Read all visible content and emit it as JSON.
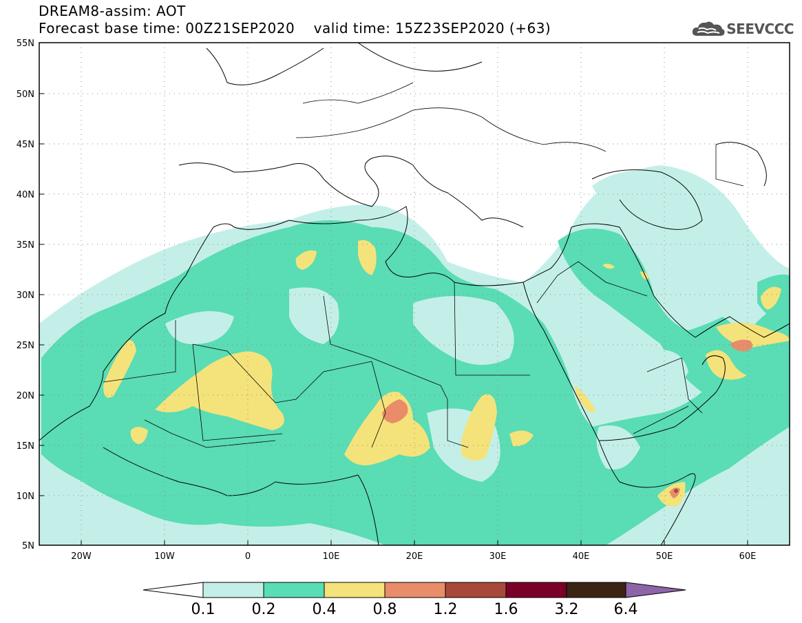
{
  "header": {
    "line1": "DREAM8-assim: AOT",
    "line2": "Forecast base time: 00Z21SEP2020    valid time: 15Z23SEP2020 (+63)",
    "logo_text": "SEEVCCC",
    "logo_icon": "cloud-logo-icon"
  },
  "map": {
    "lon_range": [
      -25,
      65
    ],
    "lat_range": [
      5,
      55
    ],
    "lat_ticks": [
      "55N",
      "50N",
      "45N",
      "40N",
      "35N",
      "30N",
      "25N",
      "20N",
      "15N",
      "10N",
      "5N"
    ],
    "lon_ticks": [
      "20W",
      "10W",
      "0",
      "10E",
      "20E",
      "30E",
      "40E",
      "50E",
      "60E"
    ],
    "grid": "dotted"
  },
  "legend": {
    "labels": [
      "0.1",
      "0.2",
      "0.4",
      "0.8",
      "1.2",
      "1.6",
      "3.2",
      "6.4"
    ],
    "colors": {
      "below": "#ffffff",
      "c1": "#c4efe8",
      "c2": "#5adcb4",
      "c3": "#f4e37a",
      "c4": "#e88c6a",
      "c5": "#a8483a",
      "c6": "#7a0028",
      "c7": "#3c2414",
      "above": "#8e64a8"
    }
  }
}
